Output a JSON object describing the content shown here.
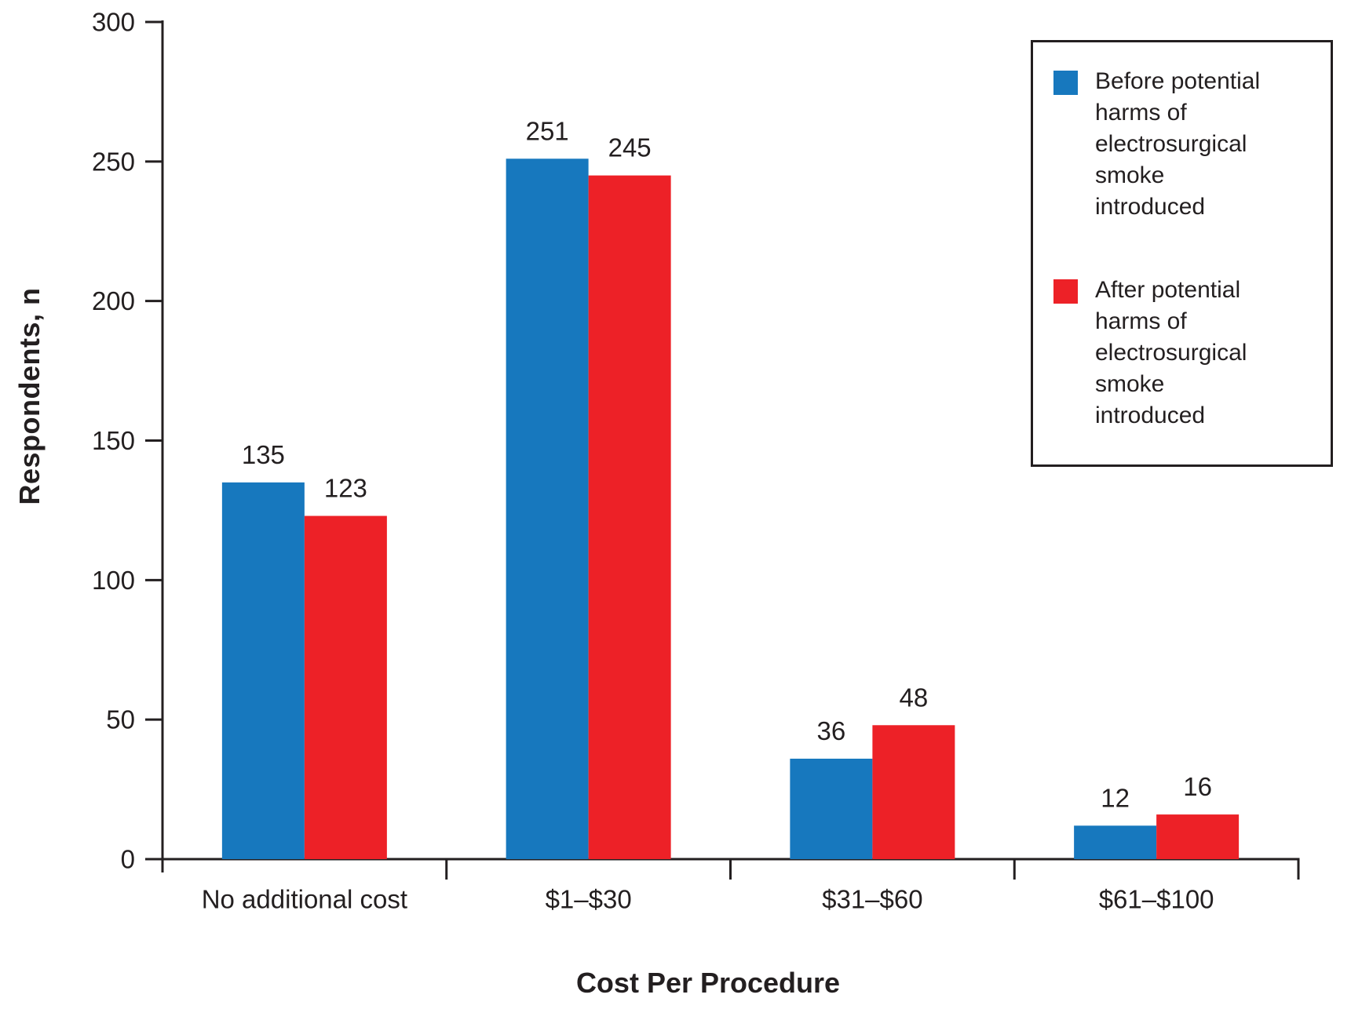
{
  "figure": {
    "background": "#FFFFFF",
    "text_color": "#231F20"
  },
  "chart_data": {
    "type": "bar",
    "title": "",
    "xlabel": "Cost Per Procedure",
    "ylabel": "Respondents, n",
    "categories": [
      "No additional cost",
      "$1–$30",
      "$31–$60",
      "$61–$100"
    ],
    "series": [
      {
        "name": "Before potential harms of electrosurgical smoke introduced",
        "color": "#1778BE",
        "values": [
          135,
          251,
          36,
          12
        ]
      },
      {
        "name": "After potential harms of electrosurgical smoke introduced",
        "color": "#ED2127",
        "values": [
          123,
          245,
          48,
          16
        ]
      }
    ],
    "bar_value_labels": true,
    "ylim": [
      0,
      300
    ],
    "yticks": [
      0,
      50,
      100,
      150,
      200,
      250,
      300
    ],
    "grid": false,
    "axis_color": "#231F20",
    "legend_position": "upper right",
    "legend": {
      "items": [
        {
          "color": "#1778BE",
          "lines": [
            "Before potential",
            "harms of",
            "electrosurgical",
            "smoke",
            "introduced"
          ]
        },
        {
          "color": "#ED2127",
          "lines": [
            "After potential",
            "harms of",
            "electrosurgical",
            "smoke",
            "introduced"
          ]
        }
      ]
    }
  }
}
